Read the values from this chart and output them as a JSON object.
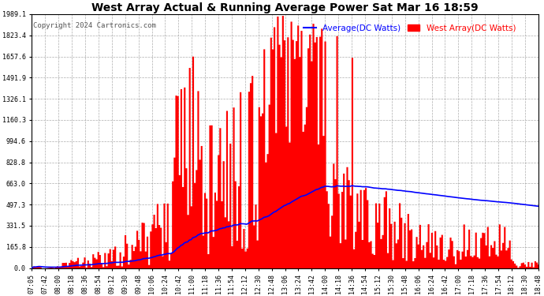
{
  "title": "West Array Actual & Running Average Power Sat Mar 16 18:59",
  "copyright": "Copyright 2024 Cartronics.com",
  "legend_avg": "Average(DC Watts)",
  "legend_west": "West Array(DC Watts)",
  "ymax": 1989.1,
  "yticks": [
    0.0,
    165.8,
    331.5,
    497.3,
    663.0,
    828.8,
    994.6,
    1160.3,
    1326.1,
    1491.9,
    1657.6,
    1823.4,
    1989.1
  ],
  "bg_color": "#ffffff",
  "grid_color": "#999999",
  "bar_color": "#ff0000",
  "avg_color": "#0000ff",
  "title_color": "#000000",
  "copyright_color": "#000000",
  "legend_avg_color": "#0000ff",
  "legend_west_color": "#ff0000",
  "time_labels": [
    "07:05",
    "07:42",
    "08:00",
    "08:18",
    "08:36",
    "08:54",
    "09:12",
    "09:30",
    "09:48",
    "10:06",
    "10:24",
    "10:42",
    "11:00",
    "11:18",
    "11:36",
    "11:54",
    "12:12",
    "12:30",
    "12:48",
    "13:06",
    "13:24",
    "13:42",
    "14:00",
    "14:18",
    "14:36",
    "14:54",
    "15:12",
    "15:30",
    "15:48",
    "16:06",
    "16:24",
    "16:42",
    "17:00",
    "17:18",
    "17:36",
    "17:54",
    "18:12",
    "18:30",
    "18:48"
  ]
}
